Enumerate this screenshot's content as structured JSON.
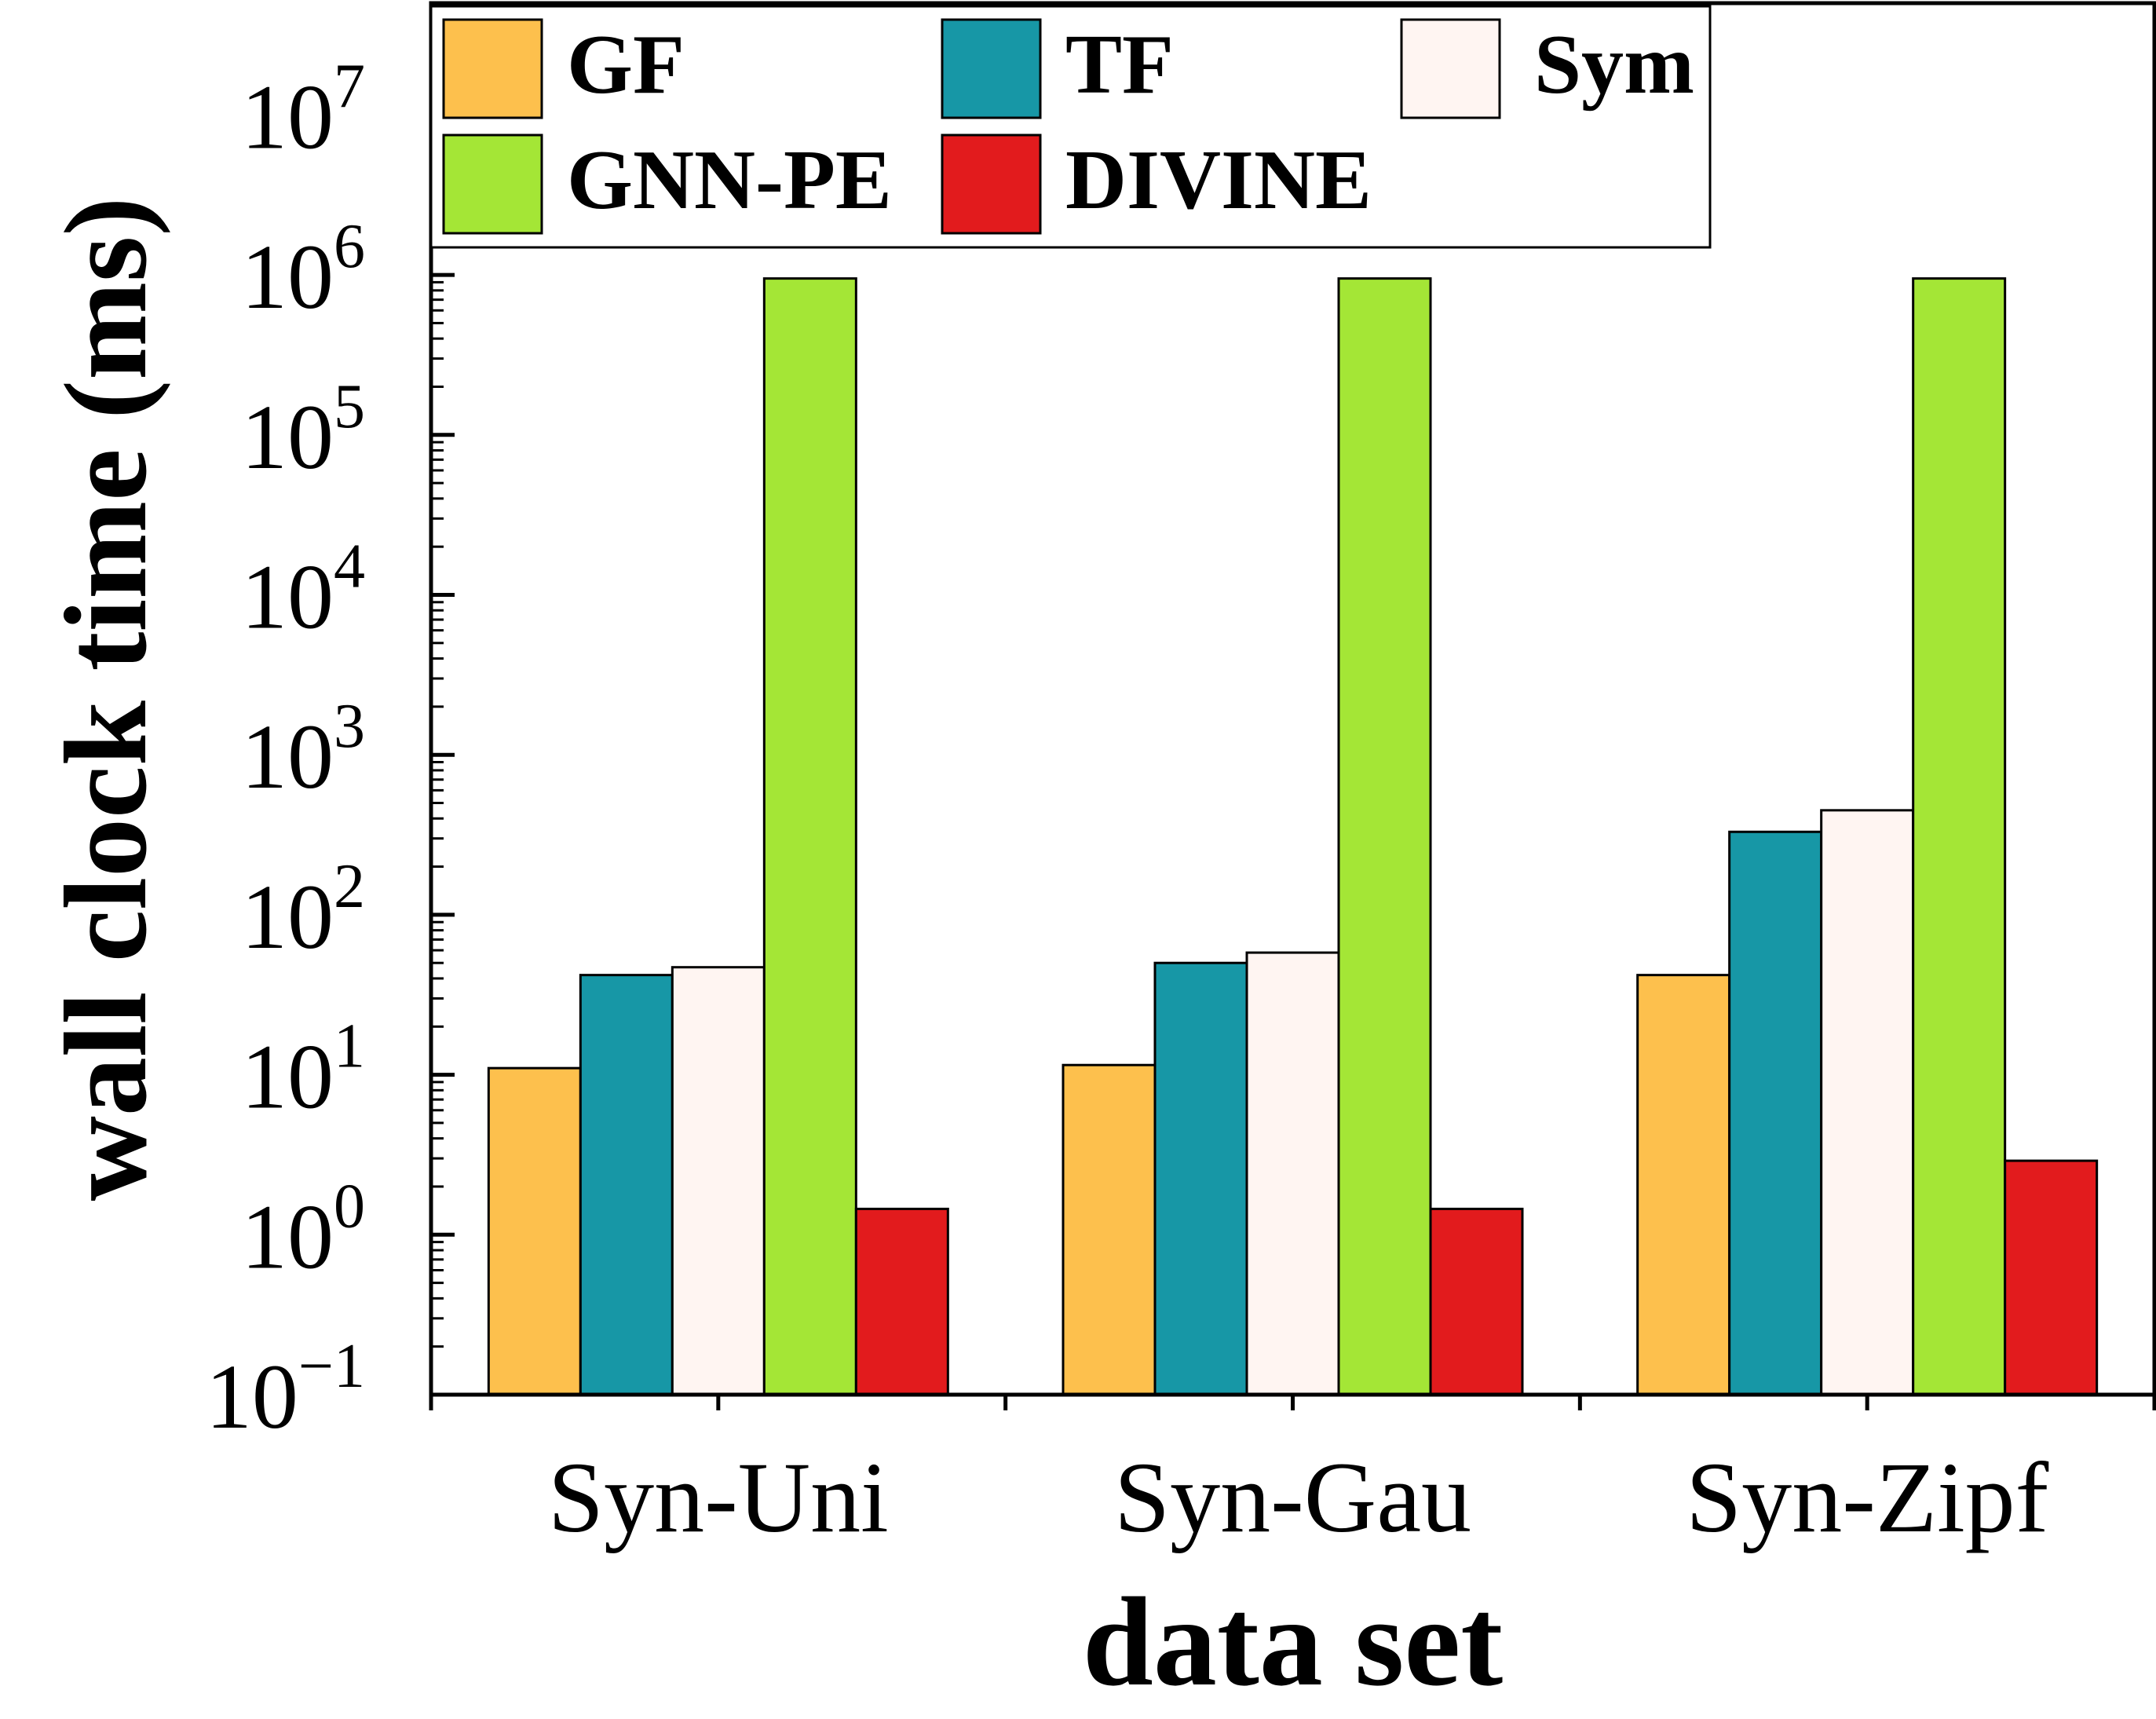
{
  "chart_data": {
    "type": "bar",
    "yscale": "log",
    "xlabel": "data set",
    "ylabel": "wall clock time (ms)",
    "ylim": [
      0.1,
      50000000
    ],
    "ytick_exponents": [
      -1,
      0,
      1,
      2,
      3,
      4,
      5,
      6,
      7
    ],
    "ytick_base": "10",
    "categories": [
      "Syn-Uni",
      "Syn-Gau",
      "Syn-Zipf"
    ],
    "series": [
      {
        "name": "GF",
        "color": "#FDC04D",
        "values": [
          11,
          11.5,
          42
        ]
      },
      {
        "name": "TF",
        "color": "#1797A6",
        "values": [
          42,
          50,
          330
        ]
      },
      {
        "name": "Sym",
        "color": "#FFF5F2",
        "values": [
          47,
          58,
          450
        ]
      },
      {
        "name": "GNN-PE",
        "color": "#A4E636",
        "values": [
          950000,
          950000,
          950000
        ]
      },
      {
        "name": "DIVINE",
        "color": "#E21B1D",
        "values": [
          1.45,
          1.45,
          2.9
        ]
      }
    ],
    "legend": {
      "position": "top-left",
      "columns": 3,
      "order": [
        "GF",
        "TF",
        "Sym",
        "GNN-PE",
        "DIVINE"
      ]
    }
  }
}
